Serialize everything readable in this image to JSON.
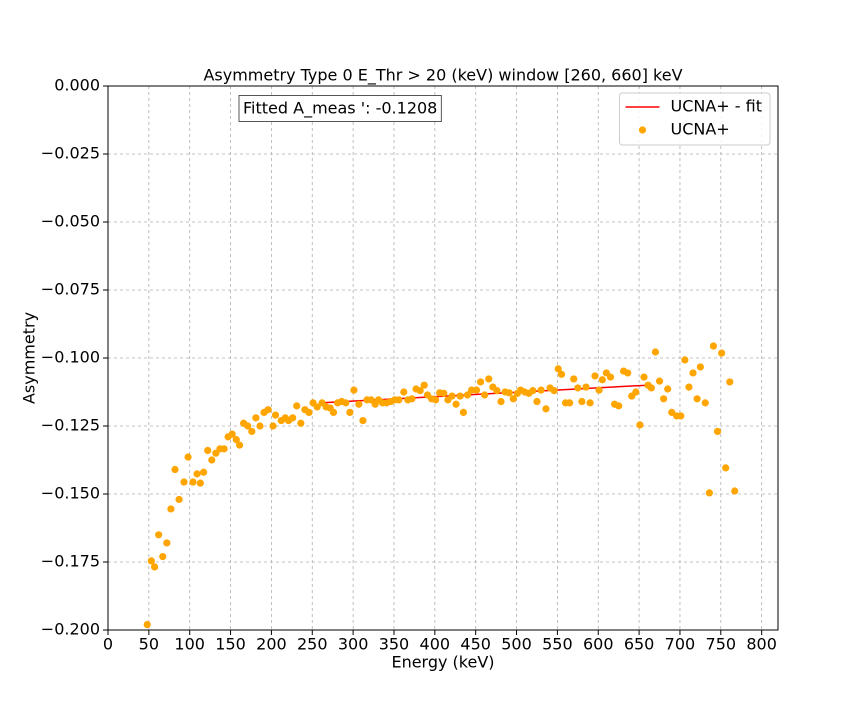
{
  "chart_data": {
    "type": "scatter",
    "title": "Asymmetry Type 0 E_Thr > 20 (keV) window [260, 660] keV",
    "x_label": "Energy (keV)",
    "y_label": "Asymmetry",
    "annotation": "Fitted A_meas ': -0.1208",
    "xlim": [
      0,
      820
    ],
    "ylim": [
      -0.2,
      0
    ],
    "xticks": [
      0,
      50,
      100,
      150,
      200,
      250,
      300,
      350,
      400,
      450,
      500,
      550,
      600,
      650,
      700,
      750,
      800
    ],
    "yticks": [
      {
        "value": -0.2,
        "label": "−0.200"
      },
      {
        "value": -0.175,
        "label": "−0.175"
      },
      {
        "value": -0.15,
        "label": "−0.150"
      },
      {
        "value": -0.125,
        "label": "−0.125"
      },
      {
        "value": -0.1,
        "label": "−0.100"
      },
      {
        "value": -0.075,
        "label": "−0.075"
      },
      {
        "value": -0.05,
        "label": "−0.050"
      },
      {
        "value": -0.025,
        "label": "−0.025"
      },
      {
        "value": 0,
        "label": "0.000"
      }
    ],
    "grid": true,
    "legend": "upper right",
    "series": [
      {
        "name": "UCNA+ - fit",
        "type": "line",
        "color": "#ff0000",
        "x": [
          260,
          660
        ],
        "values": [
          -0.1165,
          -0.11
        ]
      },
      {
        "name": "UCNA+",
        "type": "scatter",
        "color": "#ffa500",
        "x": [
          48,
          53,
          57,
          62,
          67,
          72,
          77,
          82,
          87,
          93,
          98,
          104,
          109,
          113,
          117,
          122,
          127,
          132,
          137,
          142,
          147,
          152,
          157,
          161,
          166,
          171,
          176,
          181,
          186,
          191,
          196,
          202,
          205,
          212,
          217,
          221,
          226,
          231,
          236,
          241,
          246,
          251,
          256,
          262,
          267,
          272,
          276,
          281,
          286,
          291,
          296,
          301,
          307,
          312,
          317,
          322,
          327,
          331,
          336,
          341,
          346,
          351,
          356,
          362,
          367,
          372,
          377,
          382,
          387,
          391,
          396,
          401,
          406,
          411,
          416,
          421,
          426,
          431,
          435,
          440,
          445,
          451,
          456,
          461,
          466,
          471,
          476,
          481,
          486,
          491,
          496,
          501,
          505,
          510,
          515,
          520,
          525,
          530,
          536,
          541,
          546,
          551,
          555,
          560,
          565,
          570,
          575,
          580,
          585,
          590,
          596,
          601,
          605,
          610,
          615,
          620,
          625,
          631,
          636,
          641,
          646,
          651,
          656,
          661,
          665,
          670,
          675,
          680,
          685,
          690,
          696,
          701,
          706,
          711,
          716,
          721,
          725,
          731,
          736,
          741,
          746,
          751,
          756,
          761,
          767
        ],
        "values": [
          -0.198,
          -0.1746,
          -0.1768,
          -0.165,
          -0.173,
          -0.168,
          -0.1555,
          -0.141,
          -0.152,
          -0.1456,
          -0.1364,
          -0.1456,
          -0.1426,
          -0.146,
          -0.142,
          -0.134,
          -0.1375,
          -0.135,
          -0.1334,
          -0.1334,
          -0.129,
          -0.128,
          -0.13,
          -0.132,
          -0.124,
          -0.125,
          -0.127,
          -0.122,
          -0.125,
          -0.12,
          -0.119,
          -0.125,
          -0.121,
          -0.123,
          -0.122,
          -0.123,
          -0.122,
          -0.1176,
          -0.124,
          -0.119,
          -0.12,
          -0.1165,
          -0.118,
          -0.1165,
          -0.118,
          -0.1184,
          -0.12,
          -0.1165,
          -0.116,
          -0.1165,
          -0.12,
          -0.1118,
          -0.117,
          -0.123,
          -0.1154,
          -0.1154,
          -0.117,
          -0.1154,
          -0.1165,
          -0.1165,
          -0.116,
          -0.1154,
          -0.1154,
          -0.1125,
          -0.1154,
          -0.115,
          -0.1114,
          -0.112,
          -0.11,
          -0.1136,
          -0.115,
          -0.1154,
          -0.1128,
          -0.113,
          -0.1154,
          -0.114,
          -0.117,
          -0.114,
          -0.12,
          -0.1136,
          -0.1118,
          -0.1118,
          -0.1088,
          -0.1136,
          -0.1077,
          -0.1107,
          -0.112,
          -0.116,
          -0.1125,
          -0.1128,
          -0.115,
          -0.113,
          -0.1118,
          -0.1125,
          -0.113,
          -0.112,
          -0.116,
          -0.1118,
          -0.1187,
          -0.111,
          -0.112,
          -0.104,
          -0.106,
          -0.1165,
          -0.1165,
          -0.1077,
          -0.111,
          -0.116,
          -0.1107,
          -0.1165,
          -0.1066,
          -0.1118,
          -0.108,
          -0.1055,
          -0.107,
          -0.117,
          -0.1176,
          -0.1048,
          -0.1055,
          -0.114,
          -0.1125,
          -0.1246,
          -0.107,
          -0.11,
          -0.111,
          -0.0978,
          -0.1085,
          -0.115,
          -0.1114,
          -0.12,
          -0.1213,
          -0.1213,
          -0.1007,
          -0.1107,
          -0.1055,
          -0.115,
          -0.1033,
          -0.1165,
          -0.1496,
          -0.0956,
          -0.127,
          -0.0982,
          -0.1404,
          -0.1088,
          -0.1489
        ]
      }
    ]
  }
}
